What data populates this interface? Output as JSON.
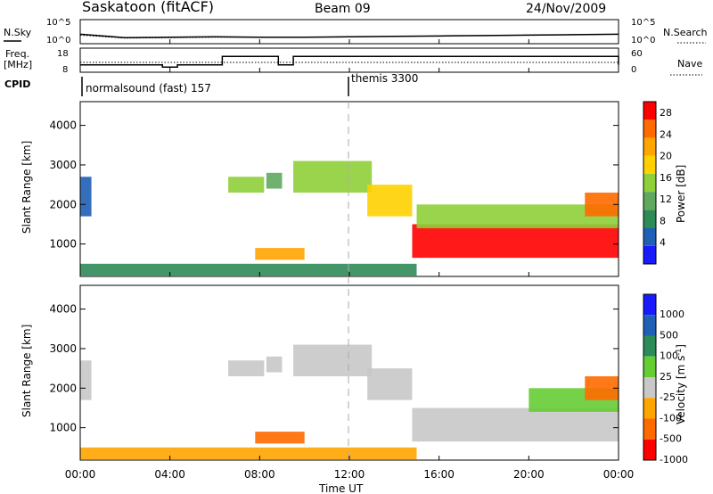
{
  "header": {
    "station": "Saskatoon (fitACF)",
    "beam": "Beam 09",
    "date": "24/Nov/2009"
  },
  "strip_panels": {
    "nsky": {
      "left_label": "N.Sky",
      "right_label": "N.Search",
      "left_ticks": [
        "10^5",
        "10^0"
      ],
      "right_ticks": [
        "10^5",
        "10^0"
      ]
    },
    "freq": {
      "left_label_1": "Freq.",
      "left_label_2": "[MHz]",
      "right_label": "Nave",
      "left_ticks": [
        "18",
        "8"
      ],
      "right_ticks": [
        "60",
        "0"
      ]
    },
    "cpid": {
      "label": "CPID",
      "modes": [
        "normalsound (fast) 157",
        "themis 3300"
      ]
    }
  },
  "time_axis": {
    "label": "Time UT",
    "ticks": [
      "00:00",
      "04:00",
      "08:00",
      "12:00",
      "16:00",
      "20:00",
      "00:00"
    ]
  },
  "colors": {
    "power": [
      "#1a1aff",
      "#1f5fb5",
      "#2e8b57",
      "#5fa85f",
      "#8fcf3a",
      "#ffd000",
      "#ffa500",
      "#ff6a00",
      "#ff0000"
    ],
    "velocity": [
      "#1a1aff",
      "#1f5fb5",
      "#2e8b57",
      "#66cc33",
      "#c8c8c8",
      "#ffa500",
      "#ff6a00",
      "#ff0000"
    ]
  },
  "chart_data": [
    {
      "type": "line",
      "title": "N.Sky / N.Search",
      "x": [
        "00:00",
        "02:00",
        "04:00",
        "06:00",
        "08:00",
        "10:00",
        "12:00",
        "14:00",
        "16:00",
        "18:00",
        "20:00",
        "22:00",
        "24:00"
      ],
      "series": [
        {
          "name": "N.Sky",
          "values": [
            2.0,
            1.2,
            1.3,
            1.4,
            1.3,
            1.3,
            1.4,
            1.5,
            1.6,
            1.7,
            1.8,
            1.9,
            2.0
          ]
        },
        {
          "name": "N.Search",
          "values": [
            1.8,
            1.1,
            1.2,
            1.3,
            1.3,
            1.3,
            1.4,
            1.5,
            1.6,
            1.7,
            1.8,
            1.9,
            2.0
          ]
        }
      ]
    },
    {
      "type": "line",
      "title": "Freq. / Nave",
      "x": [
        "00:00",
        "01:20",
        "01:40",
        "03:40",
        "04:20",
        "05:40",
        "06:20",
        "08:50",
        "09:30",
        "24:00"
      ],
      "series": [
        {
          "name": "Freq.",
          "values": [
            11,
            11,
            11,
            10,
            11,
            11,
            15,
            11,
            15,
            11
          ]
        },
        {
          "name": "Nave",
          "values": [
            25,
            25,
            25,
            25,
            25,
            25,
            25,
            25,
            25,
            25
          ]
        }
      ]
    },
    {
      "type": "heatmap",
      "title": "Power",
      "xlabel": "Time UT",
      "ylabel": "Slant Range [km]",
      "ylim": [
        180,
        4600
      ],
      "y_ticks": [
        1000,
        2000,
        3000,
        4000
      ],
      "colorbar": {
        "label": "Power [dB]",
        "ticks": [
          4,
          8,
          12,
          16,
          20,
          24,
          28
        ],
        "range": [
          0,
          30
        ]
      },
      "regions": [
        {
          "t_start": 0.0,
          "t_end": 0.5,
          "r_start": 1700,
          "r_end": 2700,
          "value": 6
        },
        {
          "t_start": 0.0,
          "t_end": 15.0,
          "r_start": 200,
          "r_end": 500,
          "value": 9
        },
        {
          "t_start": 6.6,
          "t_end": 8.2,
          "r_start": 2300,
          "r_end": 2700,
          "value": 14
        },
        {
          "t_start": 8.3,
          "t_end": 9.0,
          "r_start": 2400,
          "r_end": 2800,
          "value": 12
        },
        {
          "t_start": 9.5,
          "t_end": 13.0,
          "r_start": 2300,
          "r_end": 3100,
          "value": 16
        },
        {
          "t_start": 12.8,
          "t_end": 14.8,
          "r_start": 1700,
          "r_end": 2500,
          "value": 18
        },
        {
          "t_start": 7.8,
          "t_end": 10.0,
          "r_start": 600,
          "r_end": 900,
          "value": 20
        },
        {
          "t_start": 14.8,
          "t_end": 24.0,
          "r_start": 650,
          "r_end": 1500,
          "value": 27
        },
        {
          "t_start": 15.0,
          "t_end": 24.0,
          "r_start": 1400,
          "r_end": 2000,
          "value": 16
        },
        {
          "t_start": 22.5,
          "t_end": 24.0,
          "r_start": 1700,
          "r_end": 2300,
          "value": 26
        }
      ]
    },
    {
      "type": "heatmap",
      "title": "Velocity",
      "xlabel": "Time UT",
      "ylabel": "Slant Range [km]",
      "ylim": [
        180,
        4600
      ],
      "y_ticks": [
        1000,
        2000,
        3000,
        4000
      ],
      "colorbar": {
        "label": "Velocity [m s-1]",
        "ticks": [
          1000,
          500,
          100,
          25,
          -25,
          -100,
          -500,
          -1000
        ]
      },
      "regions": [
        {
          "t_start": 0.0,
          "t_end": 0.5,
          "r_start": 1700,
          "r_end": 2700,
          "value": 0
        },
        {
          "t_start": 0.0,
          "t_end": 15.0,
          "r_start": 200,
          "r_end": 500,
          "value": -100
        },
        {
          "t_start": 6.6,
          "t_end": 8.2,
          "r_start": 2300,
          "r_end": 2700,
          "value": 0
        },
        {
          "t_start": 8.3,
          "t_end": 9.0,
          "r_start": 2400,
          "r_end": 2800,
          "value": 0
        },
        {
          "t_start": 9.5,
          "t_end": 13.0,
          "r_start": 2300,
          "r_end": 3100,
          "value": 0
        },
        {
          "t_start": 12.8,
          "t_end": 14.8,
          "r_start": 1700,
          "r_end": 2500,
          "value": 0
        },
        {
          "t_start": 7.8,
          "t_end": 10.0,
          "r_start": 600,
          "r_end": 900,
          "value": -300
        },
        {
          "t_start": 14.8,
          "t_end": 24.0,
          "r_start": 650,
          "r_end": 1500,
          "value": 0
        },
        {
          "t_start": 20.0,
          "t_end": 24.0,
          "r_start": 1400,
          "r_end": 2000,
          "value": 80
        },
        {
          "t_start": 22.5,
          "t_end": 24.0,
          "r_start": 1700,
          "r_end": 2300,
          "value": -300
        }
      ]
    }
  ]
}
